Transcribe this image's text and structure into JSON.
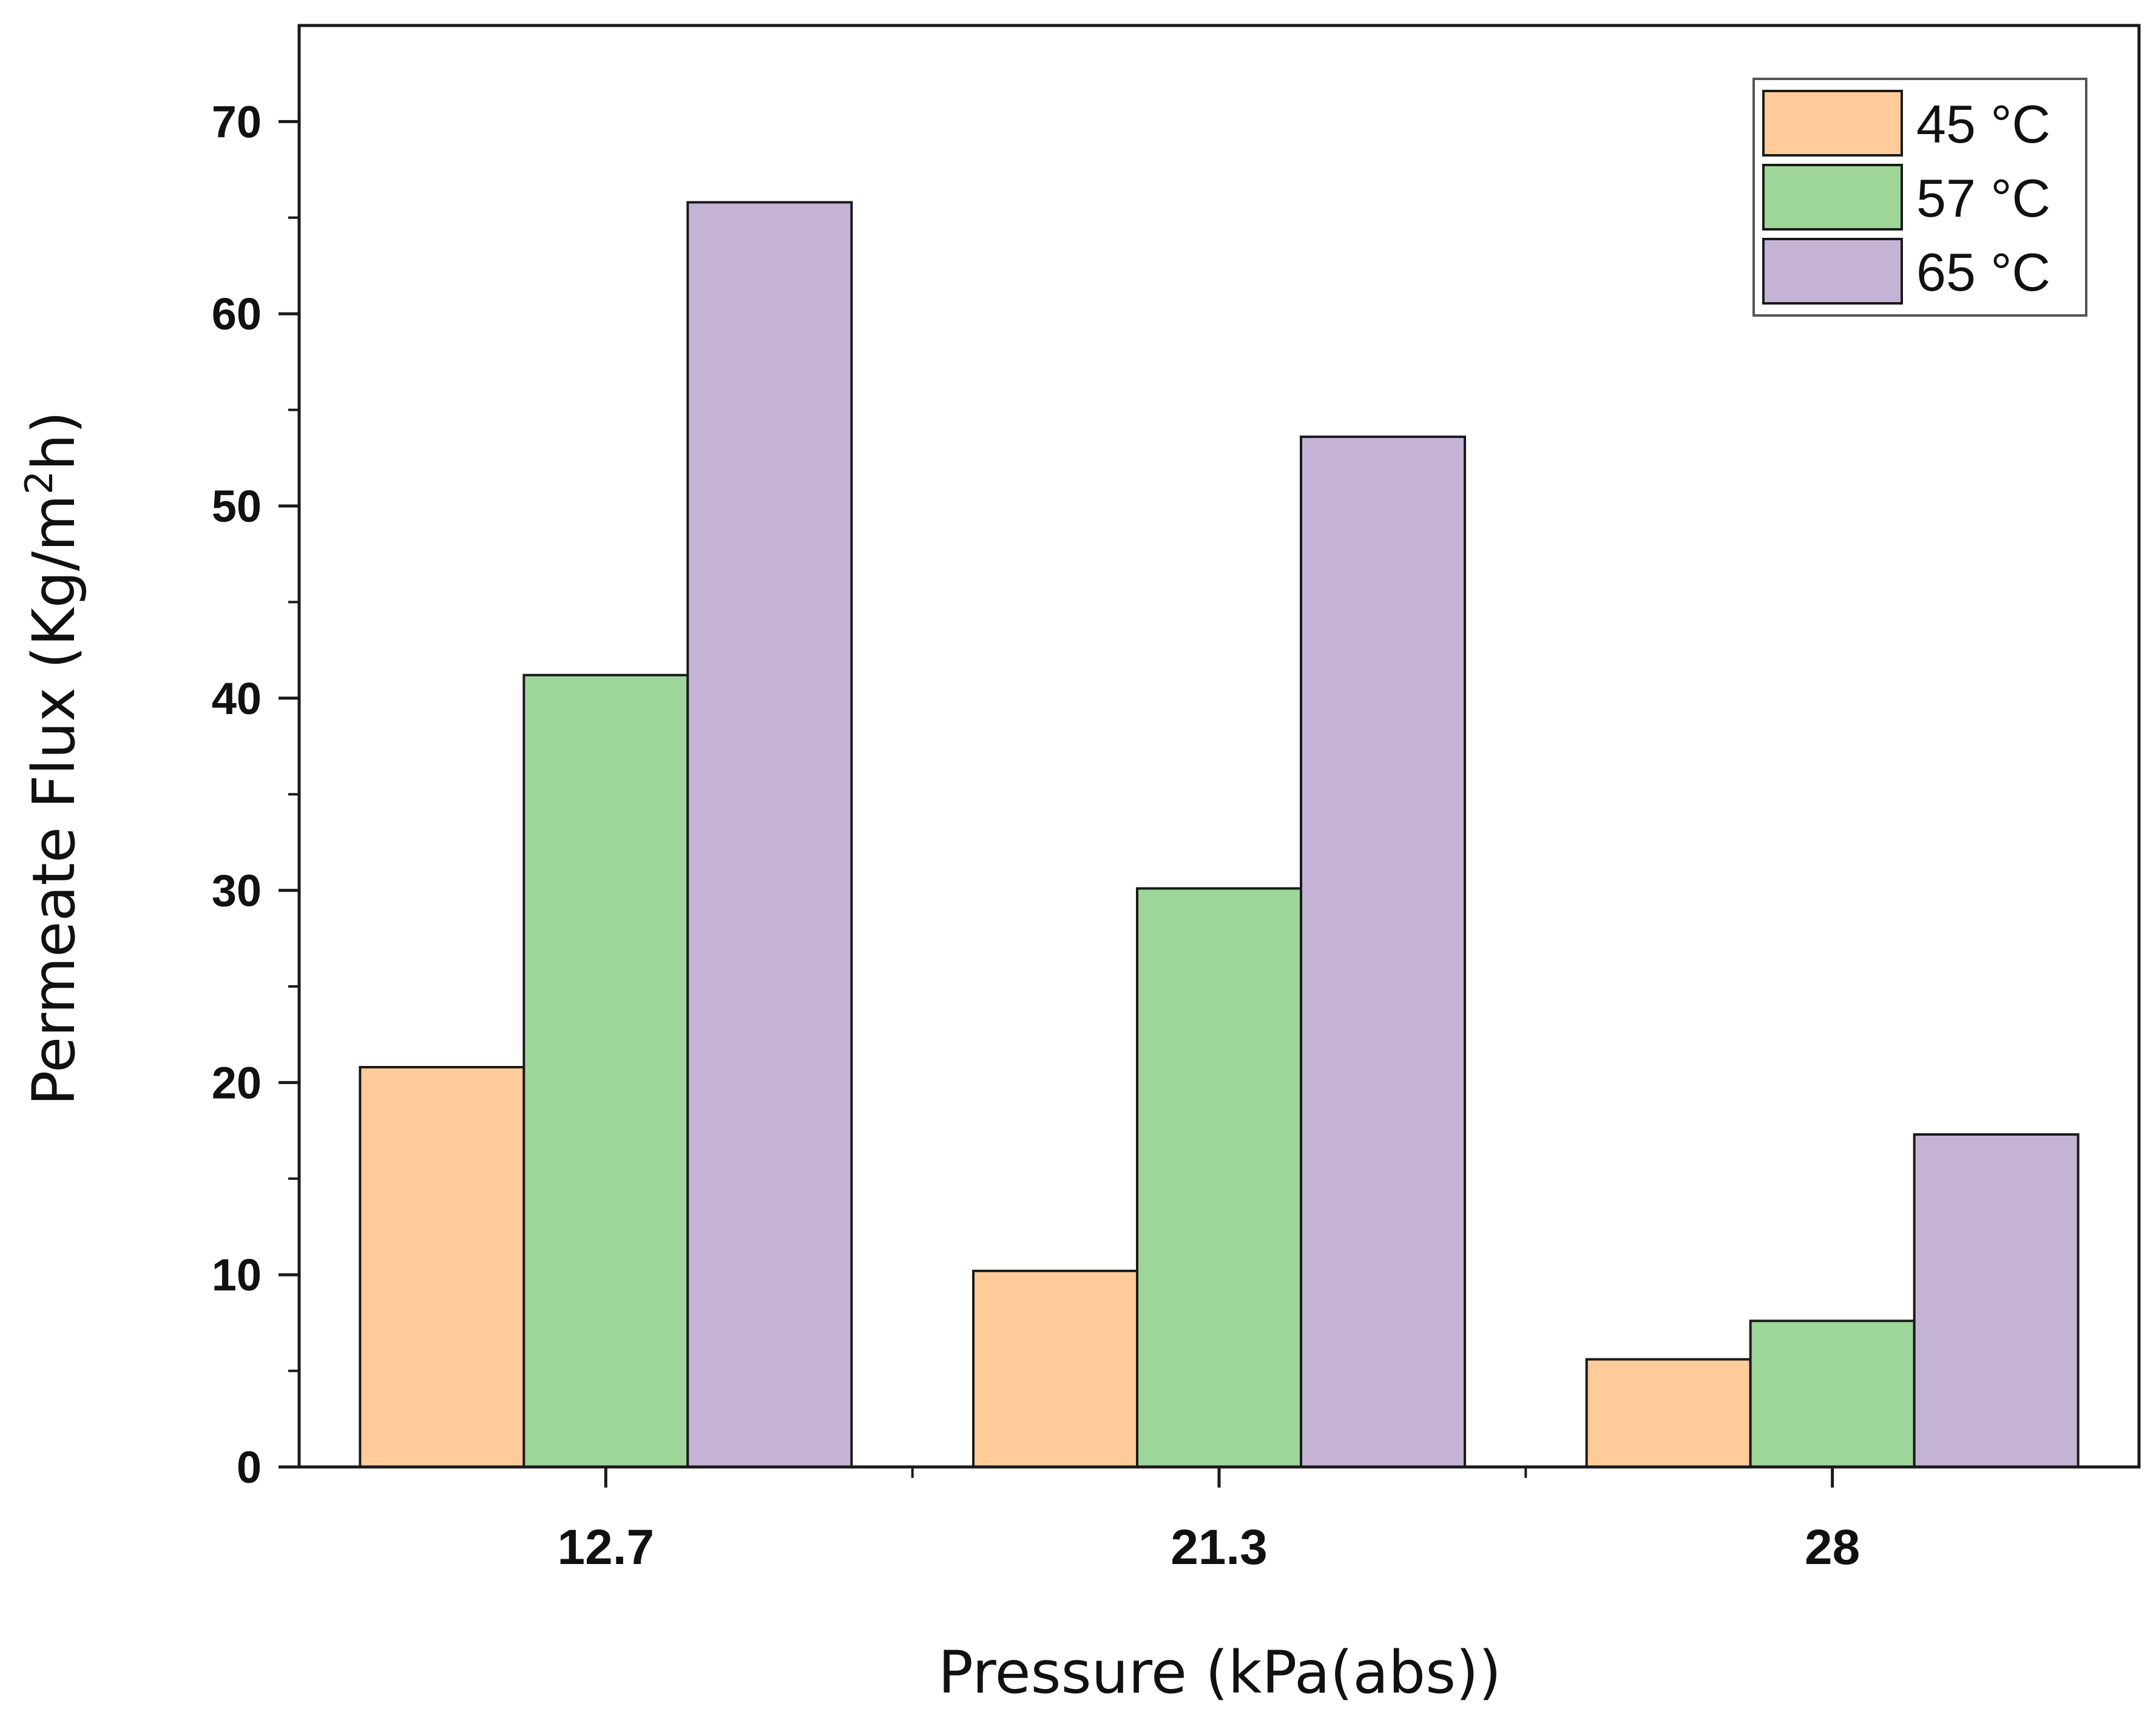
{
  "chart_data": {
    "type": "bar",
    "title": "",
    "xlabel": "Pressure (kPa(abs))",
    "ylabel_prefix": "Permeate Flux (Kg/m",
    "ylabel_sup": "2",
    "ylabel_suffix": "h)",
    "categories": [
      "12.7",
      "21.3",
      "28"
    ],
    "ylim": [
      0,
      75
    ],
    "yticks": [
      "0",
      "10",
      "20",
      "30",
      "40",
      "50",
      "60",
      "70"
    ],
    "grid": false,
    "legend_position": "top-right",
    "series": [
      {
        "name": "45 °C",
        "color": "#FFCC99",
        "values": [
          20.8,
          10.2,
          5.6
        ]
      },
      {
        "name": "57 °C",
        "color": "#9ED69A",
        "values": [
          41.2,
          30.1,
          7.6
        ]
      },
      {
        "name": "65 °C",
        "color": "#C5B3D6",
        "values": [
          65.8,
          53.6,
          17.3
        ]
      }
    ]
  }
}
